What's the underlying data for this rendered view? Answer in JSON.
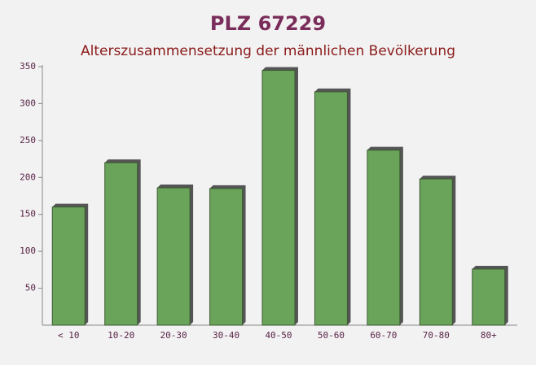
{
  "chart_data": {
    "type": "bar",
    "title": "PLZ 67229",
    "subtitle": "Alterszusammensetzung der männlichen Bevölkerung",
    "categories": [
      "< 10",
      "10-20",
      "20-30",
      "30-40",
      "40-50",
      "50-60",
      "60-70",
      "70-80",
      "80+"
    ],
    "values": [
      160,
      220,
      186,
      185,
      345,
      316,
      237,
      198,
      76
    ],
    "color": "#6aa35a",
    "ylim": [
      0,
      350
    ],
    "yticks": [
      50,
      100,
      150,
      200,
      250,
      300,
      350
    ],
    "grid": false
  }
}
